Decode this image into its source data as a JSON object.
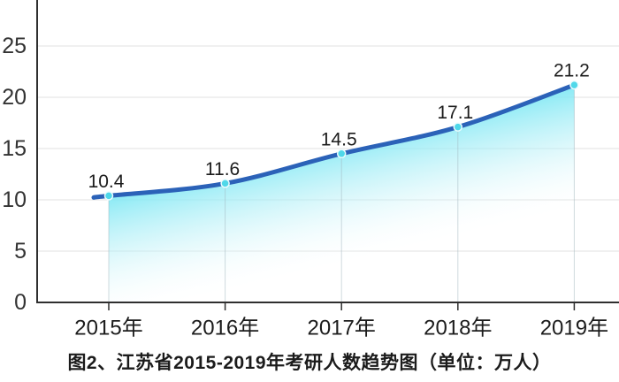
{
  "chart_data": {
    "type": "area",
    "title": "图2、江苏省2015-2019年考研人数趋势图（单位：万人）",
    "unit_label": "万人",
    "categories": [
      "2015年",
      "2016年",
      "2017年",
      "2018年",
      "2019年"
    ],
    "values": [
      10.4,
      11.6,
      14.5,
      17.1,
      21.2
    ],
    "value_labels": [
      "10.4",
      "11.6",
      "14.5",
      "17.1",
      "21.2"
    ],
    "yticks": [
      0,
      5,
      10,
      15,
      20,
      25
    ],
    "ylim": [
      0,
      29.5
    ],
    "xlabel": "",
    "ylabel": "",
    "grid": "horizontal",
    "legend": "none",
    "smooth": true,
    "colors": {
      "line": "#2b62b8",
      "marker": "#4fd8e9",
      "marker_ring": "#eafcfe",
      "area_top": "#7ee8f4",
      "area_mid": "#b5f0f7",
      "area_bottom": "#ffffff",
      "gridline": "#e2e2e2",
      "dropline": "#9fb6bd",
      "axis": "#2f2f2f",
      "tick_label": "#333333",
      "value_label": "#1c1c1c"
    }
  }
}
